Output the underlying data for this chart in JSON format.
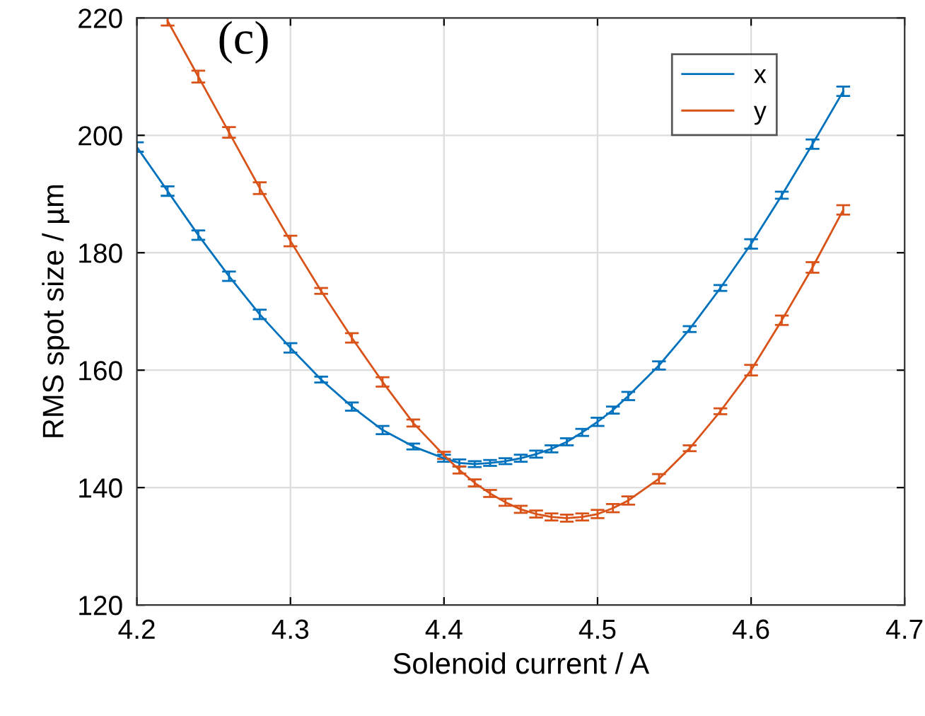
{
  "chart_data": {
    "type": "line",
    "xlabel": "Solenoid current / A",
    "ylabel": "RMS spot size / µm",
    "annotations": [
      "(c)"
    ],
    "xlim": [
      4.2,
      4.7
    ],
    "xticks": [
      4.2,
      4.3,
      4.4,
      4.5,
      4.6,
      4.7
    ],
    "ylim": [
      120,
      220
    ],
    "yticks": [
      120,
      140,
      160,
      180,
      200,
      220
    ],
    "grid": true,
    "legend": "top right",
    "marker": "none",
    "line_style": "solid",
    "series": [
      {
        "name": "x",
        "color": "#0072bd",
        "x": [
          4.2,
          4.22,
          4.24,
          4.26,
          4.28,
          4.3,
          4.32,
          4.34,
          4.36,
          4.38,
          4.4,
          4.41,
          4.42,
          4.43,
          4.44,
          4.45,
          4.46,
          4.47,
          4.48,
          4.49,
          4.5,
          4.51,
          4.52,
          4.54,
          4.56,
          4.58,
          4.6,
          4.62,
          4.64,
          4.66
        ],
        "values": [
          198,
          190.5,
          183,
          176,
          169.5,
          163.8,
          158.4,
          153.8,
          149.8,
          147,
          145,
          144.2,
          144,
          144.2,
          144.5,
          145,
          145.7,
          146.6,
          147.8,
          149.4,
          151.2,
          153.2,
          155.6,
          160.8,
          167,
          174,
          181.5,
          189.8,
          198.5,
          207.5
        ],
        "errors": [
          0.8,
          0.8,
          0.8,
          0.8,
          0.8,
          0.8,
          0.5,
          0.7,
          0.7,
          0.5,
          0.6,
          0.6,
          0.5,
          0.5,
          0.5,
          0.6,
          0.6,
          0.6,
          0.6,
          0.6,
          0.7,
          0.6,
          0.7,
          0.7,
          0.5,
          0.5,
          0.8,
          0.6,
          0.8,
          0.8
        ]
      },
      {
        "name": "y",
        "color": "#d95319",
        "x": [
          4.22,
          4.24,
          4.26,
          4.28,
          4.3,
          4.32,
          4.34,
          4.36,
          4.38,
          4.4,
          4.41,
          4.42,
          4.43,
          4.44,
          4.45,
          4.46,
          4.47,
          4.48,
          4.49,
          4.5,
          4.51,
          4.52,
          4.54,
          4.56,
          4.58,
          4.6,
          4.62,
          4.64,
          4.66
        ],
        "values": [
          219.5,
          210,
          200.5,
          191,
          182,
          173.5,
          165.5,
          158,
          151,
          145.5,
          143,
          140.8,
          139,
          137.5,
          136.3,
          135.5,
          135,
          134.8,
          135,
          135.5,
          136.5,
          137.8,
          141.5,
          146.7,
          153,
          160,
          168.5,
          177.5,
          187.3
        ],
        "errors": [
          0.8,
          1,
          0.9,
          1,
          0.9,
          0.5,
          0.8,
          0.8,
          0.6,
          0.6,
          0.6,
          0.6,
          0.6,
          0.6,
          0.6,
          0.6,
          0.6,
          0.6,
          0.6,
          0.7,
          0.7,
          0.7,
          0.8,
          0.5,
          0.5,
          0.9,
          0.8,
          0.9,
          0.8
        ]
      }
    ]
  }
}
